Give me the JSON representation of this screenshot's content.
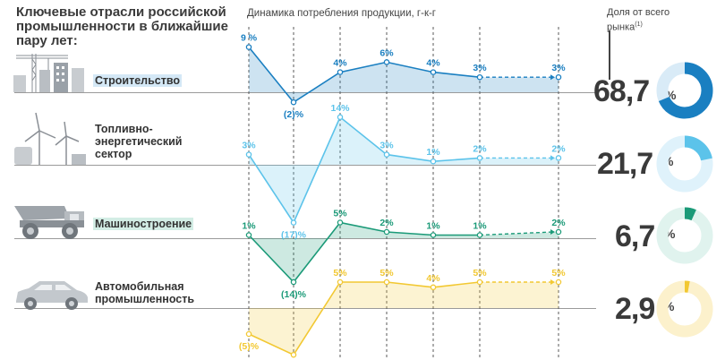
{
  "header": {
    "title": "Ключевые отрасли российской промышленности в ближайшие пару лет:",
    "dynamics_title": "Динамика потребления продукции, г-к-г",
    "share_title": "Доля от всего рынка",
    "share_note": "(1)"
  },
  "chart_data": {
    "type": "line",
    "title": "Динамика потребления продукции, г-к-г",
    "series": [
      {
        "name": "Строительство",
        "values": [
          9,
          -2,
          4,
          6,
          4,
          3,
          3
        ],
        "labels": [
          "9 %",
          "(2)%",
          "4%",
          "6%",
          "4%",
          "3%",
          "3%"
        ],
        "share": 68.7,
        "share_label": "68,7",
        "color": "#1a7fc1",
        "color_light": "#d9ebf7"
      },
      {
        "name": "Топливно-энергетический сектор",
        "values": [
          3,
          -17,
          14,
          3,
          1,
          2,
          2
        ],
        "labels": [
          "3%",
          "(17)%",
          "14%",
          "3%",
          "1%",
          "2%",
          "2%"
        ],
        "share": 21.7,
        "share_label": "21,7",
        "color": "#5cc3ea",
        "color_light": "#dff2fb"
      },
      {
        "name": "Машиностроение",
        "values": [
          1,
          -14,
          5,
          2,
          1,
          1,
          2
        ],
        "labels": [
          "1%",
          "(14)%",
          "5%",
          "2%",
          "1%",
          "1%",
          "2%"
        ],
        "share": 6.7,
        "share_label": "6,7",
        "color": "#1b9a78",
        "color_light": "#e0f3ee"
      },
      {
        "name": "Автомобильная промышленность",
        "values": [
          -5,
          -9,
          5,
          5,
          4,
          5,
          5
        ],
        "labels": [
          "(5)%",
          "",
          "5%",
          "5%",
          "4%",
          "5%",
          "5%"
        ],
        "share": 2.9,
        "share_label": "2,9",
        "color": "#f2c832",
        "color_light": "#fcf1cc"
      }
    ],
    "forecast_segment": "last"
  },
  "percent_sign": "%"
}
